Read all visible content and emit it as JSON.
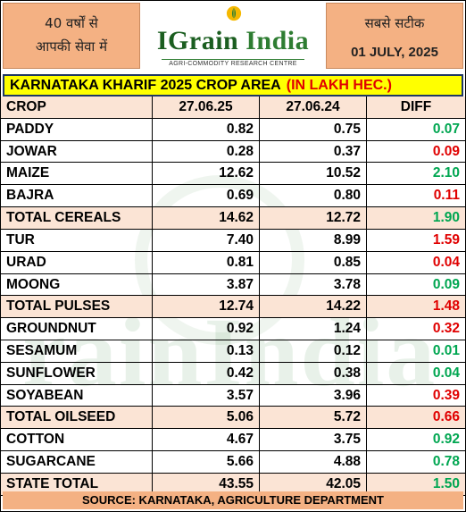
{
  "header": {
    "left_line1": "40 वर्षों से",
    "left_line2": "आपकी सेवा में",
    "logo_title_first": "IGrain",
    "logo_title_rest": " India",
    "logo_subtitle": "AGRI-COMMODITY RESEARCH CENTRE",
    "right_line1": "सबसे सटीक",
    "right_date": "01 JULY, 2025"
  },
  "title": {
    "main": "KARNATAKA KHARIF 2025 CROP AREA",
    "unit": "(IN LAKH HEC.)"
  },
  "table": {
    "headers": [
      "CROP",
      "27.06.25",
      "27.06.24",
      "DIFF"
    ],
    "rows": [
      {
        "crop": "PADDY",
        "y2025": "0.82",
        "y2024": "0.75",
        "diff": "0.07",
        "trend": "pos",
        "total": false
      },
      {
        "crop": "JOWAR",
        "y2025": "0.28",
        "y2024": "0.37",
        "diff": "0.09",
        "trend": "neg",
        "total": false
      },
      {
        "crop": "MAIZE",
        "y2025": "12.62",
        "y2024": "10.52",
        "diff": "2.10",
        "trend": "pos",
        "total": false
      },
      {
        "crop": "BAJRA",
        "y2025": "0.69",
        "y2024": "0.80",
        "diff": "0.11",
        "trend": "neg",
        "total": false
      },
      {
        "crop": "TOTAL CEREALS",
        "y2025": "14.62",
        "y2024": "12.72",
        "diff": "1.90",
        "trend": "pos",
        "total": true
      },
      {
        "crop": "TUR",
        "y2025": "7.40",
        "y2024": "8.99",
        "diff": "1.59",
        "trend": "neg",
        "total": false
      },
      {
        "crop": "URAD",
        "y2025": "0.81",
        "y2024": "0.85",
        "diff": "0.04",
        "trend": "neg",
        "total": false
      },
      {
        "crop": "MOONG",
        "y2025": "3.87",
        "y2024": "3.78",
        "diff": "0.09",
        "trend": "pos",
        "total": false
      },
      {
        "crop": "TOTAL PULSES",
        "y2025": "12.74",
        "y2024": "14.22",
        "diff": "1.48",
        "trend": "neg",
        "total": true
      },
      {
        "crop": "GROUNDNUT",
        "y2025": "0.92",
        "y2024": "1.24",
        "diff": "0.32",
        "trend": "neg",
        "total": false
      },
      {
        "crop": "SESAMUM",
        "y2025": "0.13",
        "y2024": "0.12",
        "diff": "0.01",
        "trend": "pos",
        "total": false
      },
      {
        "crop": "SUNFLOWER",
        "y2025": "0.42",
        "y2024": "0.38",
        "diff": "0.04",
        "trend": "pos",
        "total": false
      },
      {
        "crop": "SOYABEAN",
        "y2025": "3.57",
        "y2024": "3.96",
        "diff": "0.39",
        "trend": "neg",
        "total": false
      },
      {
        "crop": "TOTAL OILSEED",
        "y2025": "5.06",
        "y2024": "5.72",
        "diff": "0.66",
        "trend": "neg",
        "total": true
      },
      {
        "crop": "COTTON",
        "y2025": "4.67",
        "y2024": "3.75",
        "diff": "0.92",
        "trend": "pos",
        "total": false
      },
      {
        "crop": "SUGARCANE",
        "y2025": "5.66",
        "y2024": "4.88",
        "diff": "0.78",
        "trend": "pos",
        "total": false
      },
      {
        "crop": "STATE TOTAL",
        "y2025": "43.55",
        "y2024": "42.05",
        "diff": "1.50",
        "trend": "pos",
        "total": true
      }
    ]
  },
  "colors": {
    "positive": "#00a651",
    "negative": "#e00000",
    "header_bg": "#f4b183",
    "row_highlight": "#fbe4d5",
    "title_bg": "#ffff00",
    "brand_green": "#2e7d32"
  },
  "icons": {
    "logo": "wheat-grain-icon"
  },
  "footer": {
    "source": "SOURCE: KARNATAKA, AGRICULTURE DEPARTMENT"
  }
}
